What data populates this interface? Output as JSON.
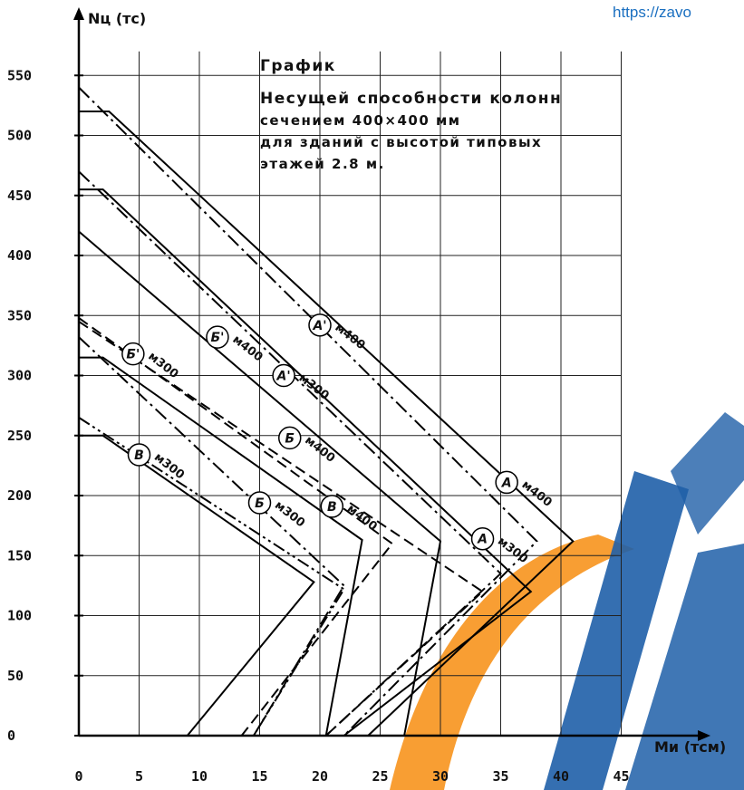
{
  "watermark_url": "https://zavo",
  "chart_data": {
    "type": "line",
    "title": "График",
    "subtitle_lines": [
      "Несущей способности колонн",
      "сечением 400×400 мм",
      "для зданий с высотой типовых",
      "этажей 2.8 м."
    ],
    "xlabel": "Ми (тсм)",
    "ylabel": "Nц (тс)",
    "xlim": [
      0,
      50
    ],
    "ylim": [
      0,
      580
    ],
    "grid": true,
    "x_ticks": [
      "0",
      "5",
      "10",
      "15",
      "20",
      "25",
      "30",
      "35",
      "40",
      "45"
    ],
    "y_ticks": [
      "0",
      "50",
      "100",
      "150",
      "200",
      "250",
      "300",
      "350",
      "400",
      "450",
      "500",
      "550"
    ],
    "series": [
      {
        "name": "А",
        "concrete": "м400",
        "style": "solid",
        "points": [
          [
            0,
            520
          ],
          [
            2.5,
            520
          ],
          [
            41,
            162
          ],
          [
            24,
            0
          ]
        ]
      },
      {
        "name": "А",
        "concrete": "м300",
        "style": "solid",
        "points": [
          [
            0,
            455
          ],
          [
            2,
            455
          ],
          [
            37.5,
            120
          ],
          [
            22,
            0
          ]
        ]
      },
      {
        "name": "А'",
        "concrete": "м400",
        "style": "dashdot",
        "points": [
          [
            0,
            540
          ],
          [
            38,
            162
          ],
          [
            22,
            0
          ]
        ]
      },
      {
        "name": "А'",
        "concrete": "м300",
        "style": "dashdot",
        "points": [
          [
            0,
            470
          ],
          [
            35,
            135
          ],
          [
            20.5,
            0
          ]
        ]
      },
      {
        "name": "Б",
        "concrete": "м400",
        "style": "solid",
        "points": [
          [
            0,
            420
          ],
          [
            30,
            162
          ],
          [
            27,
            0
          ]
        ]
      },
      {
        "name": "Б",
        "concrete": "м300",
        "style": "solid",
        "points": [
          [
            0,
            315
          ],
          [
            2,
            315
          ],
          [
            23.5,
            163
          ],
          [
            20.5,
            0
          ]
        ]
      },
      {
        "name": "Б'",
        "concrete": "м400",
        "style": "dashed",
        "points": [
          [
            0,
            345
          ],
          [
            33.5,
            120
          ],
          [
            20.5,
            0
          ]
        ]
      },
      {
        "name": "Б'",
        "concrete": "м300",
        "style": "dashdot",
        "points": [
          [
            0,
            332
          ],
          [
            22,
            125
          ],
          [
            14.5,
            0
          ]
        ]
      },
      {
        "name": "В",
        "concrete": "м400",
        "style": "dashed",
        "points": [
          [
            0,
            348
          ],
          [
            26,
            160
          ],
          [
            13.5,
            0
          ]
        ]
      },
      {
        "name": "В",
        "concrete": "м300",
        "style": "solid",
        "points": [
          [
            0,
            250
          ],
          [
            2,
            250
          ],
          [
            19.5,
            128
          ],
          [
            9,
            0
          ]
        ]
      },
      {
        "name": "В",
        "concrete": "м300",
        "style": "dashdotdot",
        "points": [
          [
            0,
            265
          ],
          [
            22,
            122
          ],
          [
            14.5,
            0
          ]
        ]
      }
    ],
    "annotations": [
      {
        "id": "lbl-A-m400",
        "letter": "А",
        "text": "м400",
        "at": [
          35.5,
          211
        ]
      },
      {
        "id": "lbl-A-m300",
        "letter": "А",
        "text": "м300",
        "at": [
          33.5,
          164
        ]
      },
      {
        "id": "lbl-A1-m400",
        "letter": "А'",
        "text": "м400",
        "at": [
          20,
          342
        ]
      },
      {
        "id": "lbl-A1-m300",
        "letter": "А'",
        "text": "м300",
        "at": [
          17,
          300
        ]
      },
      {
        "id": "lbl-B-m400",
        "letter": "Б",
        "text": "м400",
        "at": [
          17.5,
          248
        ]
      },
      {
        "id": "lbl-B-m300",
        "letter": "Б",
        "text": "м300",
        "at": [
          15,
          194
        ]
      },
      {
        "id": "lbl-B1-m400",
        "letter": "Б'",
        "text": "м400",
        "at": [
          11.5,
          332
        ]
      },
      {
        "id": "lbl-B1-m300",
        "letter": "Б'",
        "text": "м300",
        "at": [
          4.5,
          318
        ]
      },
      {
        "id": "lbl-V-m400",
        "letter": "В",
        "text": "м400",
        "at": [
          21,
          191
        ]
      },
      {
        "id": "lbl-V-m300",
        "letter": "В",
        "text": "м300",
        "at": [
          5,
          234
        ]
      }
    ]
  }
}
